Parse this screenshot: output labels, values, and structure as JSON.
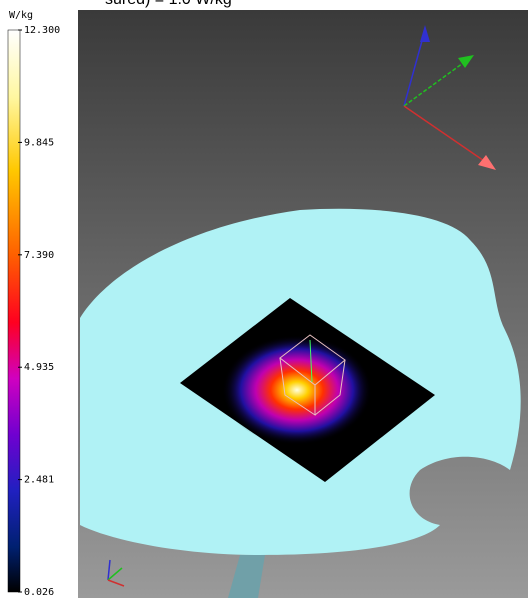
{
  "header": {
    "title": "sured) = 1.0 W/kg"
  },
  "colorbar": {
    "unit": "W/kg",
    "range": [
      0.026,
      12.3
    ],
    "ticks": [
      {
        "value": 12.3,
        "label": "12.300"
      },
      {
        "value": 9.845,
        "label": "9.845"
      },
      {
        "value": 7.39,
        "label": "7.390"
      },
      {
        "value": 4.935,
        "label": "4.935"
      },
      {
        "value": 2.481,
        "label": "2.481"
      },
      {
        "value": 0.026,
        "label": "0.026"
      }
    ]
  }
}
